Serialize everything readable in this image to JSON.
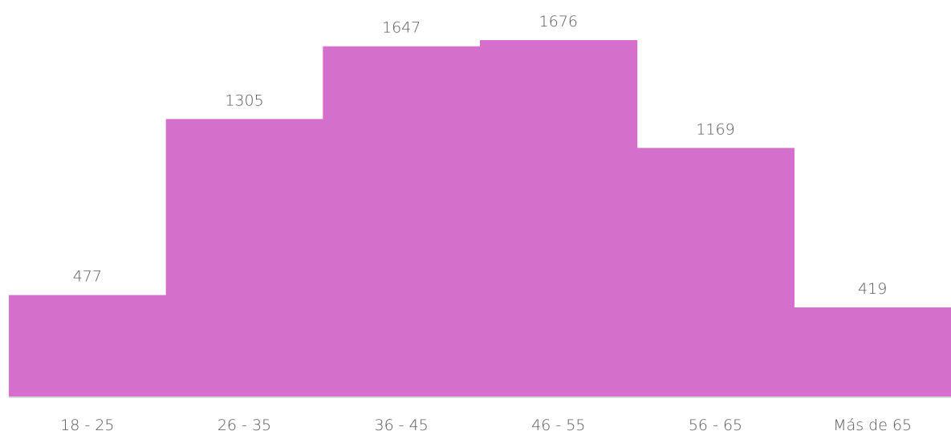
{
  "chart_data": {
    "type": "bar",
    "categories": [
      "18 - 25",
      "26 - 35",
      "36 - 45",
      "46 - 55",
      "56 - 65",
      "Más de 65"
    ],
    "values": [
      477,
      1305,
      1647,
      1676,
      1169,
      419
    ],
    "data_labels": [
      "477",
      "1305",
      "1647",
      "1676",
      "1169",
      "419"
    ],
    "title": "",
    "xlabel": "",
    "ylabel": "",
    "ylim": [
      0,
      1676
    ],
    "grid": false,
    "legend": "none",
    "bar_gap": 0
  },
  "colors": {
    "bar": "#d56fcc",
    "axis": "#d9d9d9",
    "text": "#595959"
  }
}
